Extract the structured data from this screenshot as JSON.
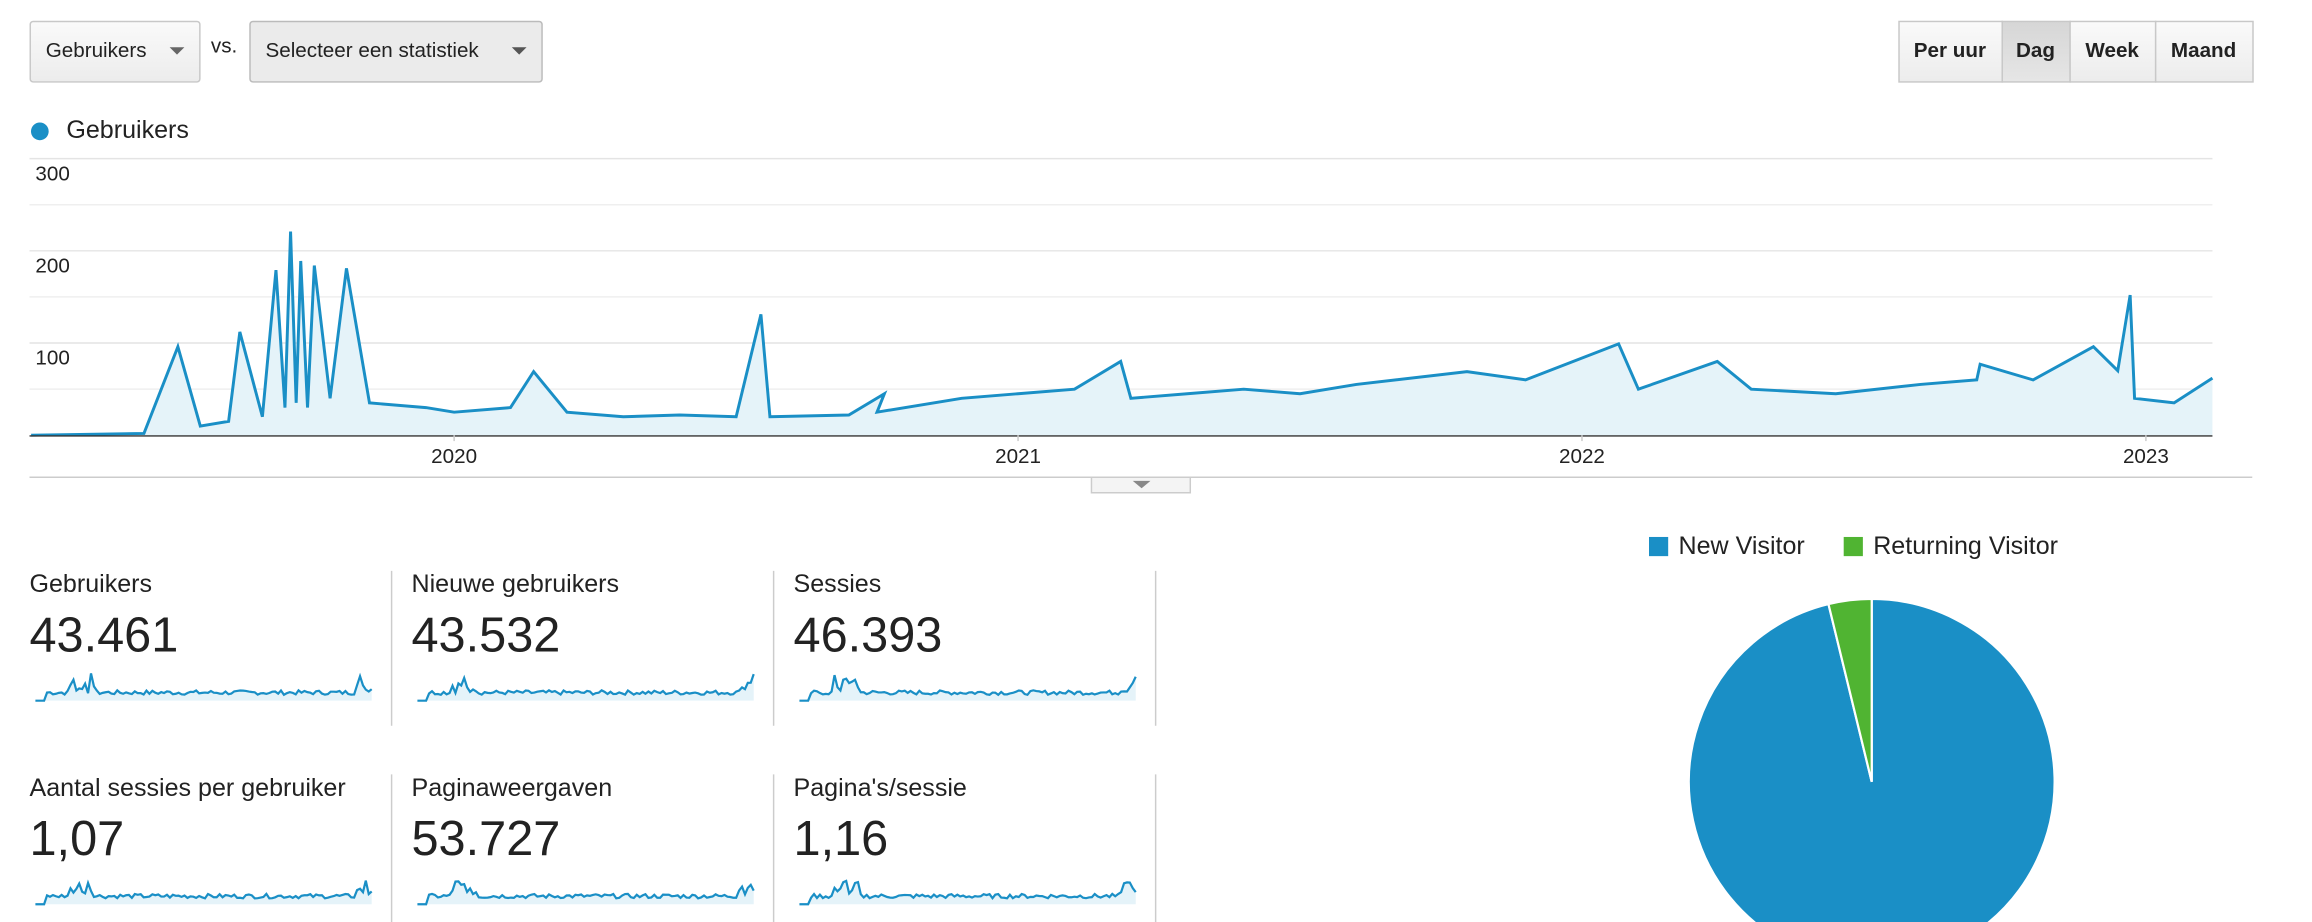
{
  "controls": {
    "metric": "Gebruikers",
    "vs": "vs.",
    "compare": "Selecteer een statistiek",
    "buttons": [
      "Per uur",
      "Dag",
      "Week",
      "Maand"
    ],
    "active_button": "Dag"
  },
  "chart_data": [
    {
      "type": "line",
      "series": [
        {
          "name": "Gebruikers",
          "color": "#1a8fc6",
          "values": [
            0,
            2,
            96,
            10,
            15,
            112,
            20,
            179,
            30,
            221,
            35,
            189,
            30,
            184,
            40,
            181,
            35,
            30,
            25,
            30,
            69,
            25,
            20,
            22,
            20,
            131,
            20,
            22,
            45,
            25,
            40,
            45,
            50,
            80,
            40,
            45,
            50,
            45,
            55,
            69,
            60,
            99,
            50,
            80,
            50,
            45,
            55,
            60,
            77,
            60,
            96,
            70,
            152,
            40,
            35,
            62
          ]
        }
      ],
      "x": [
        2019.25,
        2019.45,
        2019.51,
        2019.55,
        2019.6,
        2019.62,
        2019.66,
        2019.684,
        2019.7,
        2019.71,
        2019.72,
        2019.728,
        2019.74,
        2019.752,
        2019.78,
        2019.809,
        2019.85,
        2019.95,
        2020.0,
        2020.1,
        2020.141,
        2020.2,
        2020.3,
        2020.4,
        2020.5,
        2020.544,
        2020.56,
        2020.7,
        2020.763,
        2020.75,
        2020.9,
        2021.0,
        2021.1,
        2021.182,
        2021.2,
        2021.3,
        2021.4,
        2021.5,
        2021.6,
        2021.796,
        2021.9,
        2022.065,
        2022.1,
        2022.24,
        2022.3,
        2022.45,
        2022.6,
        2022.7,
        2022.706,
        2022.8,
        2022.907,
        2022.95,
        2022.972,
        2022.98,
        2023.05,
        2023.118
      ],
      "xlim": [
        2019.247,
        2023.118
      ],
      "xticks": [
        2020,
        2021,
        2022,
        2023
      ],
      "ylim": [
        0,
        300
      ],
      "yticks": [
        100,
        200,
        300
      ],
      "grid": true,
      "legend": "top-left"
    },
    {
      "type": "pie",
      "categories": [
        "New Visitor",
        "Returning Visitor"
      ],
      "values": [
        96.2,
        3.8
      ],
      "colors": [
        "#1a8fc6",
        "#50b432"
      ],
      "legend": "top"
    }
  ],
  "scorecards": [
    {
      "label": "Gebruikers",
      "value": "43.461"
    },
    {
      "label": "Nieuwe gebruikers",
      "value": "43.532"
    },
    {
      "label": "Sessies",
      "value": "46.393"
    },
    {
      "label": "Aantal sessies per gebruiker",
      "value": "1,07"
    },
    {
      "label": "Paginaweergaven",
      "value": "53.727"
    },
    {
      "label": "Pagina's/sessie",
      "value": "1,16"
    }
  ]
}
